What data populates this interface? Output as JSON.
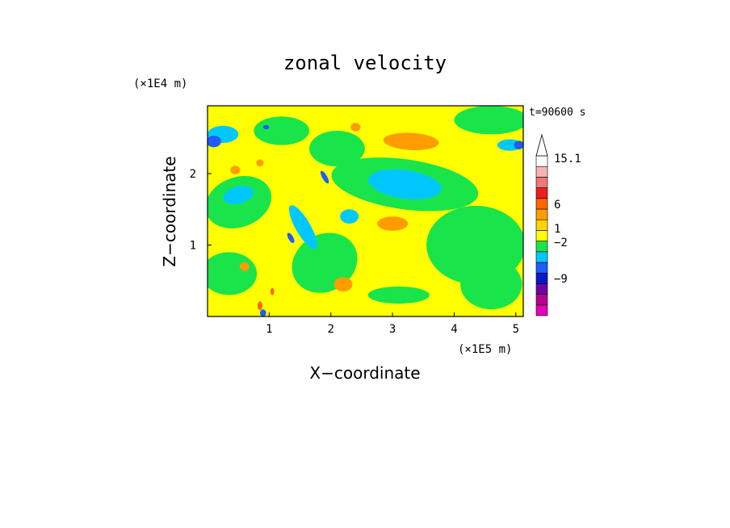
{
  "chart_data": {
    "type": "heatmap",
    "title": "zonal velocity",
    "xlabel": "X−coordinate",
    "ylabel": "Z−coordinate",
    "x_unit": "(×1E5 m)",
    "y_unit": "(×1E4 m)",
    "time_label": "t=90600 s",
    "xlim": [
      0,
      5.12
    ],
    "ylim": [
      0,
      2.95
    ],
    "x_ticks": [
      1,
      2,
      3,
      4,
      5
    ],
    "y_ticks": [
      1,
      2
    ],
    "colorbar": {
      "levels": [
        {
          "color": "#e600b8"
        },
        {
          "color": "#b8008c"
        },
        {
          "color": "#6e00a6"
        },
        {
          "color": "#0a18c8"
        },
        {
          "color": "#1e5cff"
        },
        {
          "color": "#00c8ff"
        },
        {
          "color": "#19e54a"
        },
        {
          "color": "#ffff00"
        },
        {
          "color": "#ffd400"
        },
        {
          "color": "#ff9c00"
        },
        {
          "color": "#ff6600"
        },
        {
          "color": "#ee1c1c"
        },
        {
          "color": "#f07878"
        },
        {
          "color": "#f8b4b4"
        },
        {
          "color": "#ffffff"
        }
      ],
      "tick_labels": [
        {
          "text": "−9",
          "value": -9
        },
        {
          "text": "−2",
          "value": -2
        },
        {
          "text": "1",
          "value": 1
        },
        {
          "text": "6",
          "value": 6
        },
        {
          "text": "15.1",
          "value": 15.1
        }
      ],
      "extend_max": true
    },
    "regions": [
      {
        "category": "green",
        "color": "#19e54a",
        "cx": 4.35,
        "cy": 1.0,
        "rx": 0.8,
        "ry": 0.55,
        "angle": 0
      },
      {
        "category": "green",
        "color": "#19e54a",
        "cx": 4.6,
        "cy": 0.45,
        "rx": 0.5,
        "ry": 0.35,
        "angle": 0
      },
      {
        "category": "green",
        "color": "#19e54a",
        "cx": 3.2,
        "cy": 1.85,
        "rx": 1.2,
        "ry": 0.35,
        "angle": -8
      },
      {
        "category": "green",
        "color": "#19e54a",
        "cx": 0.5,
        "cy": 1.6,
        "rx": 0.55,
        "ry": 0.35,
        "angle": 20
      },
      {
        "category": "green",
        "color": "#19e54a",
        "cx": 1.9,
        "cy": 0.75,
        "rx": 0.55,
        "ry": 0.4,
        "angle": 30
      },
      {
        "category": "green",
        "color": "#19e54a",
        "cx": 0.35,
        "cy": 0.6,
        "rx": 0.45,
        "ry": 0.3,
        "angle": 0
      },
      {
        "category": "green",
        "color": "#19e54a",
        "cx": 2.1,
        "cy": 2.35,
        "rx": 0.45,
        "ry": 0.25,
        "angle": 0
      },
      {
        "category": "green",
        "color": "#19e54a",
        "cx": 4.6,
        "cy": 2.75,
        "rx": 0.6,
        "ry": 0.2,
        "angle": 0
      },
      {
        "category": "green",
        "color": "#19e54a",
        "cx": 3.1,
        "cy": 0.3,
        "rx": 0.5,
        "ry": 0.12,
        "angle": 0
      },
      {
        "category": "green",
        "color": "#19e54a",
        "cx": 1.2,
        "cy": 2.6,
        "rx": 0.45,
        "ry": 0.2,
        "angle": 0
      },
      {
        "category": "cyan",
        "color": "#00c8ff",
        "cx": 3.2,
        "cy": 1.85,
        "rx": 0.6,
        "ry": 0.2,
        "angle": -8
      },
      {
        "category": "cyan",
        "color": "#00c8ff",
        "cx": 0.5,
        "cy": 1.7,
        "rx": 0.25,
        "ry": 0.12,
        "angle": 15
      },
      {
        "category": "cyan",
        "color": "#00c8ff",
        "cx": 1.55,
        "cy": 1.25,
        "rx": 0.12,
        "ry": 0.35,
        "angle": 30
      },
      {
        "category": "cyan",
        "color": "#00c8ff",
        "cx": 0.25,
        "cy": 2.55,
        "rx": 0.25,
        "ry": 0.12,
        "angle": 0
      },
      {
        "category": "cyan",
        "color": "#00c8ff",
        "cx": 2.3,
        "cy": 1.4,
        "rx": 0.15,
        "ry": 0.1,
        "angle": 0
      },
      {
        "category": "cyan",
        "color": "#00c8ff",
        "cx": 4.9,
        "cy": 2.4,
        "rx": 0.2,
        "ry": 0.08,
        "angle": 0
      },
      {
        "category": "blue",
        "color": "#1e5cff",
        "cx": 0.1,
        "cy": 2.45,
        "rx": 0.12,
        "ry": 0.08,
        "angle": 0
      },
      {
        "category": "blue",
        "color": "#1e5cff",
        "cx": 5.05,
        "cy": 2.4,
        "rx": 0.08,
        "ry": 0.06,
        "angle": 0
      },
      {
        "category": "blue",
        "color": "#1e5cff",
        "cx": 1.9,
        "cy": 1.95,
        "rx": 0.04,
        "ry": 0.1,
        "angle": 30
      },
      {
        "category": "blue",
        "color": "#1e5cff",
        "cx": 1.35,
        "cy": 1.1,
        "rx": 0.04,
        "ry": 0.08,
        "angle": 30
      },
      {
        "category": "blue",
        "color": "#1e5cff",
        "cx": 0.9,
        "cy": 0.05,
        "rx": 0.05,
        "ry": 0.05,
        "angle": 0
      },
      {
        "category": "blue",
        "color": "#1e5cff",
        "cx": 0.95,
        "cy": 2.65,
        "rx": 0.05,
        "ry": 0.03,
        "angle": 0
      },
      {
        "category": "orange",
        "color": "#ff9c00",
        "cx": 3.3,
        "cy": 2.45,
        "rx": 0.45,
        "ry": 0.12,
        "angle": -3
      },
      {
        "category": "orange",
        "color": "#ff9c00",
        "cx": 2.4,
        "cy": 2.65,
        "rx": 0.08,
        "ry": 0.06,
        "angle": 0
      },
      {
        "category": "orange",
        "color": "#ff9c00",
        "cx": 0.45,
        "cy": 2.05,
        "rx": 0.08,
        "ry": 0.06,
        "angle": 0
      },
      {
        "category": "orange",
        "color": "#ff9c00",
        "cx": 0.85,
        "cy": 2.15,
        "rx": 0.06,
        "ry": 0.05,
        "angle": 0
      },
      {
        "category": "orange",
        "color": "#ff9c00",
        "cx": 2.2,
        "cy": 0.45,
        "rx": 0.15,
        "ry": 0.1,
        "angle": 0
      },
      {
        "category": "orange",
        "color": "#ff9c00",
        "cx": 3.0,
        "cy": 1.3,
        "rx": 0.25,
        "ry": 0.1,
        "angle": 0
      },
      {
        "category": "orange",
        "color": "#ff9c00",
        "cx": 0.6,
        "cy": 0.7,
        "rx": 0.08,
        "ry": 0.06,
        "angle": 0
      },
      {
        "category": "red",
        "color": "#ff6600",
        "cx": 0.85,
        "cy": 0.15,
        "rx": 0.04,
        "ry": 0.06,
        "angle": 0
      },
      {
        "category": "red",
        "color": "#ff6600",
        "cx": 1.05,
        "cy": 0.35,
        "rx": 0.03,
        "ry": 0.05,
        "angle": 0
      }
    ]
  }
}
